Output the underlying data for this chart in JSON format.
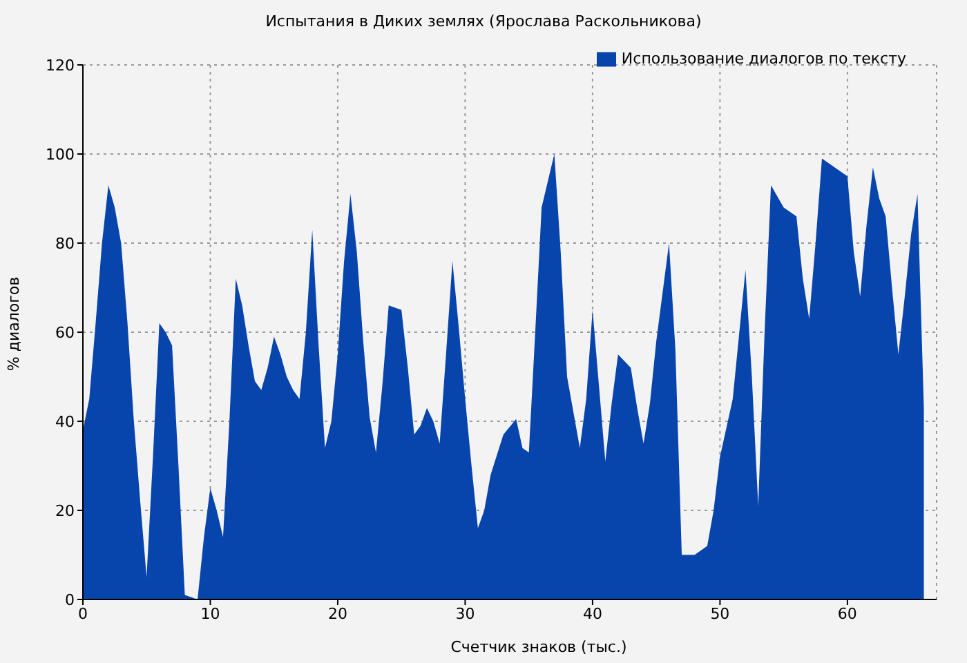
{
  "chart_data": {
    "type": "area",
    "title": "Испытания в Диких землях (Ярослава Раскольникова)",
    "xlabel": "Счетчик знаков (тыс.)",
    "ylabel": "% диалогов",
    "x": [
      0,
      0.5,
      1,
      1.5,
      2,
      2.5,
      3,
      3.5,
      4,
      4.5,
      5,
      5.5,
      6,
      6.5,
      7,
      7.5,
      8,
      8.5,
      9,
      9.5,
      10,
      10.5,
      11,
      11.5,
      12,
      12.5,
      13,
      13.5,
      14,
      14.5,
      15,
      15.5,
      16,
      16.5,
      17,
      17.5,
      18,
      18.5,
      19,
      19.5,
      20,
      20.5,
      21,
      21.5,
      22,
      22.5,
      23,
      23.5,
      24,
      25,
      25.5,
      26,
      26.5,
      27,
      27.5,
      28,
      28.5,
      29,
      29.5,
      30,
      30.5,
      31,
      31.5,
      32,
      33,
      34,
      34.5,
      35,
      35.5,
      36,
      37,
      37.5,
      38,
      39,
      39.5,
      40,
      40.5,
      41,
      41.5,
      42,
      43,
      43.5,
      44,
      44.5,
      45,
      46,
      46.5,
      47,
      48,
      49,
      49.5,
      50,
      51,
      52,
      52.5,
      53,
      53.5,
      54,
      55,
      56,
      56.5,
      57,
      57.5,
      58,
      60,
      60.5,
      61,
      61.5,
      62,
      62.5,
      63,
      63.5,
      64,
      64.5,
      65,
      65.5,
      66
    ],
    "series": [
      {
        "name": "Использование диалогов по тексту",
        "color": "#0745ac",
        "values": [
          38,
          45,
          62,
          80,
          93,
          88,
          80,
          62,
          40,
          22,
          5,
          32,
          62,
          60,
          57,
          30,
          1,
          0.5,
          0,
          14,
          25,
          20,
          14,
          40,
          72,
          66,
          57,
          49,
          47,
          52,
          59,
          55,
          50,
          47,
          45,
          60,
          83,
          57,
          34,
          40,
          55,
          76,
          91,
          78,
          58,
          41,
          33,
          48,
          66,
          65,
          52,
          37,
          39,
          43,
          40,
          35,
          55,
          76,
          61,
          45,
          30,
          16,
          20,
          28,
          37,
          40.5,
          34,
          33,
          60,
          88,
          100,
          78,
          50,
          34,
          45,
          65,
          48,
          31,
          44,
          55,
          52,
          43,
          35,
          44,
          58,
          80,
          56,
          10,
          10,
          12,
          20,
          32,
          45,
          74,
          50,
          21,
          60,
          93,
          88,
          86,
          72,
          63,
          80,
          99,
          95,
          78,
          68,
          84,
          97,
          90,
          86,
          70,
          55,
          68,
          82,
          91,
          43
        ]
      }
    ],
    "xlim": [
      0,
      67
    ],
    "xticks": [
      0,
      10,
      20,
      30,
      40,
      50,
      60
    ],
    "ylim": [
      0,
      120
    ],
    "yticks": [
      0,
      20,
      40,
      60,
      80,
      100,
      120
    ],
    "grid": true,
    "legend": "top right"
  }
}
